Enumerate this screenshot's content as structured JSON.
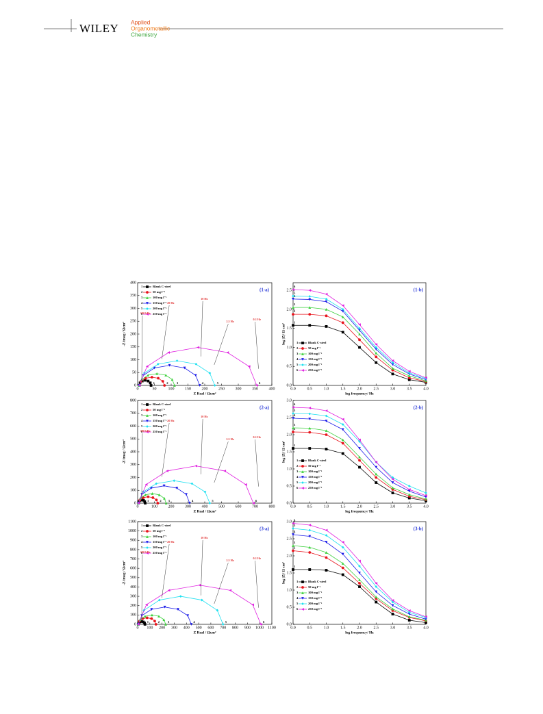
{
  "header": {
    "brand": "WILEY",
    "journal": [
      "Applied",
      "Organometallic",
      "Chemistry"
    ]
  },
  "chart_data": [
    {
      "type": "line",
      "panel": "(1-a)",
      "xlabel": "Z Real / Ωcm²",
      "ylabel": "-Z imag / Ωcm²",
      "xlim": [
        0,
        400
      ],
      "ylim": [
        0,
        400
      ],
      "xticks": [
        0,
        50,
        100,
        150,
        200,
        250,
        300,
        350,
        400
      ],
      "yticks": [
        0,
        50,
        100,
        150,
        200,
        250,
        300,
        350,
        400
      ],
      "annotations": [
        "100 kHz",
        "20 Hz",
        "10 Hz",
        "2.5 Hz",
        "0.1 Hz"
      ],
      "series": [
        {
          "name": "Blank C-steel",
          "label": "1",
          "color": "#000000",
          "marker": "square",
          "x": [
            5,
            7.3,
            13.8,
            22.5,
            31.3,
            37.7,
            40
          ],
          "values": [
            0,
            10,
            17,
            20,
            17,
            10,
            0
          ]
        },
        {
          "name": "50 mg l⁻¹",
          "label": "2",
          "color": "#e8141d",
          "marker": "circle",
          "x": [
            5,
            10,
            23.8,
            42.5,
            61.3,
            75,
            80
          ],
          "values": [
            0,
            16,
            28,
            32,
            28,
            16,
            0
          ]
        },
        {
          "name": "100 mg l⁻¹",
          "label": "3",
          "color": "#3ed13e",
          "marker": "up",
          "x": [
            5,
            12,
            31,
            57.5,
            84,
            103,
            110
          ],
          "values": [
            0,
            23,
            40,
            46,
            40,
            23,
            0
          ]
        },
        {
          "name": "150 mg l⁻¹",
          "label": "4",
          "color": "#1a1ae8",
          "marker": "down",
          "x": [
            5,
            17,
            50,
            95,
            140,
            173,
            185
          ],
          "values": [
            0,
            39,
            68,
            78,
            68,
            39,
            0
          ]
        },
        {
          "name": "200 mg l⁻¹",
          "label": "5",
          "color": "#1ee0f0",
          "marker": "diamond",
          "x": [
            5,
            20,
            61,
            117.5,
            174,
            215,
            230
          ],
          "values": [
            0,
            48,
            83,
            96,
            83,
            48,
            0
          ]
        },
        {
          "name": "250 mg l⁻¹",
          "label": "6",
          "color": "#e020e0",
          "marker": "left",
          "x": [
            5,
            28,
            92,
            180,
            268,
            332,
            355
          ],
          "values": [
            0,
            74,
            128,
            148,
            128,
            74,
            0
          ]
        }
      ]
    },
    {
      "type": "line",
      "panel": "(1-b)",
      "xlabel": "log frequency/ Hz",
      "ylabel": "log |Z|/ Ω cm²",
      "xlim": [
        0,
        4
      ],
      "ylim": [
        0,
        2.7
      ],
      "xticks": [
        {
          "value": 0,
          "label": "0.0"
        },
        0.5,
        {
          "value": 1,
          "label": "1.0"
        },
        1.5,
        {
          "value": 2,
          "label": "2.0"
        },
        2.5,
        {
          "value": 3,
          "label": "3.0"
        },
        3.5,
        {
          "value": 4,
          "label": "4.0"
        }
      ],
      "yticks": [
        {
          "value": 0,
          "label": "0.0"
        },
        0.5,
        {
          "value": 1,
          "label": "1.0"
        },
        1.5,
        {
          "value": 2,
          "label": "2.0"
        },
        2.5
      ],
      "x": [
        0,
        0.5,
        1,
        1.5,
        2,
        2.5,
        3,
        3.5,
        4
      ],
      "series": [
        {
          "name": "Blank C-steel",
          "label": "1",
          "color": "#000000",
          "marker": "square",
          "values": [
            1.58,
            1.58,
            1.55,
            1.4,
            1.0,
            0.6,
            0.3,
            0.15,
            0.08
          ]
        },
        {
          "name": "50 mg l⁻¹",
          "label": "2",
          "color": "#e8141d",
          "marker": "circle",
          "values": [
            1.87,
            1.87,
            1.83,
            1.65,
            1.2,
            0.75,
            0.4,
            0.2,
            0.1
          ]
        },
        {
          "name": "100 mg l⁻¹",
          "label": "3",
          "color": "#3ed13e",
          "marker": "up",
          "values": [
            2.05,
            2.05,
            2.0,
            1.8,
            1.35,
            0.85,
            0.45,
            0.25,
            0.12
          ]
        },
        {
          "name": "150 mg l⁻¹",
          "label": "4",
          "color": "#1a1ae8",
          "marker": "down",
          "values": [
            2.27,
            2.26,
            2.2,
            1.95,
            1.45,
            0.95,
            0.55,
            0.3,
            0.15
          ]
        },
        {
          "name": "200 mg l⁻¹",
          "label": "5",
          "color": "#1ee0f0",
          "marker": "diamond",
          "values": [
            2.35,
            2.34,
            2.27,
            2.0,
            1.5,
            1.0,
            0.6,
            0.33,
            0.18
          ]
        },
        {
          "name": "250 mg l⁻¹",
          "label": "6",
          "color": "#e020e0",
          "marker": "left",
          "values": [
            2.52,
            2.5,
            2.4,
            2.1,
            1.6,
            1.08,
            0.65,
            0.37,
            0.2
          ]
        }
      ]
    },
    {
      "type": "line",
      "panel": "(2-a)",
      "xlabel": "Z Real / Ωcm²",
      "ylabel": "-Z imag / Ωcm²",
      "xlim": [
        0,
        800
      ],
      "ylim": [
        0,
        800
      ],
      "xticks": [
        0,
        100,
        200,
        300,
        400,
        500,
        600,
        700,
        800
      ],
      "yticks": [
        0,
        100,
        200,
        300,
        400,
        500,
        600,
        700,
        800
      ],
      "annotations": [
        "100 kHz",
        "20 Hz",
        "10 Hz",
        "2.5 Hz",
        "0.1 Hz"
      ],
      "series": [
        {
          "name": "Blank C-steel",
          "label": "1",
          "color": "#000000",
          "marker": "square",
          "x": [
            5,
            7.7,
            15,
            25,
            35,
            42.3,
            45
          ],
          "values": [
            0,
            12,
            22,
            25,
            22,
            12,
            0
          ]
        },
        {
          "name": "50 mg l⁻¹",
          "label": "2",
          "color": "#e8141d",
          "marker": "circle",
          "x": [
            5,
            13,
            34,
            62.5,
            91,
            112,
            120
          ],
          "values": [
            0,
            25,
            43,
            50,
            43,
            25,
            0
          ]
        },
        {
          "name": "100 mg l⁻¹",
          "label": "3",
          "color": "#3ed13e",
          "marker": "up",
          "x": [
            5,
            16,
            46,
            87.5,
            129,
            159,
            170
          ],
          "values": [
            0,
            38,
            65,
            75,
            65,
            38,
            0
          ]
        },
        {
          "name": "150 mg l⁻¹",
          "label": "4",
          "color": "#1a1ae8",
          "marker": "down",
          "x": [
            5,
            25,
            81,
            157.5,
            234,
            290,
            310
          ],
          "values": [
            0,
            68,
            117,
            135,
            117,
            68,
            0
          ]
        },
        {
          "name": "200 mg l⁻¹",
          "label": "5",
          "color": "#1ee0f0",
          "marker": "diamond",
          "x": [
            5,
            33,
            111,
            217.5,
            324,
            402,
            430
          ],
          "values": [
            0,
            88,
            152,
            175,
            152,
            88,
            0
          ]
        },
        {
          "name": "250 mg l⁻¹",
          "label": "6",
          "color": "#e020e0",
          "marker": "left",
          "x": [
            5,
            51,
            176,
            347.5,
            519,
            644,
            690
          ],
          "values": [
            0,
            145,
            251,
            290,
            251,
            145,
            0
          ]
        }
      ]
    },
    {
      "type": "line",
      "panel": "(2-b)",
      "xlabel": "log frequency/ Hz",
      "ylabel": "log |Z|/ Ω cm²",
      "xlim": [
        0,
        4
      ],
      "ylim": [
        0,
        3
      ],
      "xticks": [
        {
          "value": 0,
          "label": "0.0"
        },
        0.5,
        {
          "value": 1,
          "label": "1.0"
        },
        1.5,
        {
          "value": 2,
          "label": "2.0"
        },
        2.5,
        {
          "value": 3,
          "label": "3.0"
        },
        3.5,
        {
          "value": 4,
          "label": "4.0"
        }
      ],
      "yticks": [
        {
          "value": 0,
          "label": "0.0"
        },
        0.5,
        {
          "value": 1,
          "label": "1.0"
        },
        1.5,
        {
          "value": 2,
          "label": "2.0"
        },
        2.5,
        {
          "value": 3,
          "label": "3.0"
        }
      ],
      "x": [
        0,
        0.5,
        1,
        1.5,
        2,
        2.5,
        3,
        3.5,
        4
      ],
      "series": [
        {
          "name": "Blank C-steel",
          "label": "1",
          "color": "#000000",
          "marker": "square",
          "values": [
            1.6,
            1.6,
            1.58,
            1.45,
            1.05,
            0.6,
            0.3,
            0.15,
            0.07
          ]
        },
        {
          "name": "50 mg l⁻¹",
          "label": "2",
          "color": "#e8141d",
          "marker": "circle",
          "values": [
            2.08,
            2.07,
            2.0,
            1.75,
            1.25,
            0.75,
            0.4,
            0.2,
            0.1
          ]
        },
        {
          "name": "100 mg l⁻¹",
          "label": "3",
          "color": "#3ed13e",
          "marker": "up",
          "values": [
            2.2,
            2.19,
            2.12,
            1.85,
            1.35,
            0.85,
            0.45,
            0.25,
            0.12
          ]
        },
        {
          "name": "150 mg l⁻¹",
          "label": "4",
          "color": "#1a1ae8",
          "marker": "down",
          "values": [
            2.48,
            2.46,
            2.4,
            2.15,
            1.6,
            1.05,
            0.6,
            0.35,
            0.18
          ]
        },
        {
          "name": "200 mg l⁻¹",
          "label": "5",
          "color": "#1ee0f0",
          "marker": "diamond",
          "values": [
            2.62,
            2.61,
            2.55,
            2.3,
            1.8,
            1.2,
            0.75,
            0.5,
            0.3
          ]
        },
        {
          "name": "250 mg l⁻¹",
          "label": "6",
          "color": "#e020e0",
          "marker": "left",
          "values": [
            2.8,
            2.78,
            2.7,
            2.45,
            1.85,
            1.2,
            0.7,
            0.4,
            0.22
          ]
        }
      ]
    },
    {
      "type": "line",
      "panel": "(3-a)",
      "xlabel": "Z Real / Ωcm²",
      "ylabel": "-Z imag / Ωcm²",
      "xlim": [
        0,
        1100
      ],
      "ylim": [
        0,
        1100
      ],
      "xticks": [
        0,
        100,
        200,
        300,
        400,
        500,
        600,
        700,
        800,
        900,
        1000,
        1100
      ],
      "yticks": [
        0,
        100,
        200,
        300,
        400,
        500,
        600,
        700,
        800,
        900,
        1000,
        1100
      ],
      "annotations": [
        "100 kHz",
        "20 Hz",
        "10 Hz",
        "2.5 Hz",
        "0.1 Hz"
      ],
      "series": [
        {
          "name": "Blank C-steel",
          "label": "1",
          "color": "#000000",
          "marker": "square",
          "x": [
            5,
            8.7,
            18.8,
            32.5,
            46.3,
            56.3,
            60
          ],
          "values": [
            0,
            15,
            26,
            30,
            26,
            15,
            0
          ]
        },
        {
          "name": "50 mg l⁻¹",
          "label": "2",
          "color": "#e8141d",
          "marker": "circle",
          "x": [
            5,
            15,
            41,
            77.5,
            114,
            140,
            150
          ],
          "values": [
            0,
            35,
            61,
            70,
            61,
            35,
            0
          ]
        },
        {
          "name": "100 mg l⁻¹",
          "label": "3",
          "color": "#3ed13e",
          "marker": "up",
          "x": [
            5,
            20,
            61,
            117.5,
            174,
            215,
            230
          ],
          "values": [
            0,
            50,
            87,
            100,
            87,
            50,
            0
          ]
        },
        {
          "name": "150 mg l⁻¹",
          "label": "4",
          "color": "#1a1ae8",
          "marker": "down",
          "x": [
            5,
            34,
            114,
            222.5,
            331,
            411,
            440
          ],
          "values": [
            0,
            93,
            160,
            185,
            160,
            93,
            0
          ]
        },
        {
          "name": "200 mg l⁻¹",
          "label": "5",
          "color": "#1ee0f0",
          "marker": "diamond",
          "x": [
            5,
            52,
            179,
            352.5,
            526,
            653,
            700
          ],
          "values": [
            0,
            150,
            260,
            300,
            260,
            150,
            0
          ]
        },
        {
          "name": "250 mg l⁻¹",
          "label": "6",
          "color": "#e020e0",
          "marker": "left",
          "x": [
            5,
            72,
            256,
            507.5,
            759,
            943,
            1010
          ],
          "values": [
            0,
            210,
            364,
            420,
            364,
            210,
            0
          ]
        }
      ]
    },
    {
      "type": "line",
      "panel": "(3-b)",
      "xlabel": "log frequency/ Hz",
      "ylabel": "log |Z|/ Ω cm²",
      "xlim": [
        0,
        4
      ],
      "ylim": [
        0,
        3
      ],
      "xticks": [
        {
          "value": 0,
          "label": "0.0"
        },
        0.5,
        {
          "value": 1,
          "label": "1.0"
        },
        1.5,
        {
          "value": 2,
          "label": "2.0"
        },
        2.5,
        {
          "value": 3,
          "label": "3.0"
        },
        3.5,
        {
          "value": 4,
          "label": "4.0"
        }
      ],
      "yticks": [
        {
          "value": 0,
          "label": "0.0"
        },
        0.5,
        {
          "value": 1,
          "label": "1.0"
        },
        1.5,
        {
          "value": 2,
          "label": "2.0"
        },
        2.5,
        {
          "value": 3,
          "label": "3.0"
        }
      ],
      "x": [
        0,
        0.5,
        1,
        1.5,
        2,
        2.5,
        3,
        3.5,
        4
      ],
      "series": [
        {
          "name": "Blank C-steel",
          "label": "1",
          "color": "#000000",
          "marker": "square",
          "values": [
            1.6,
            1.6,
            1.58,
            1.45,
            1.1,
            0.65,
            0.3,
            0.12,
            0.05
          ]
        },
        {
          "name": "50 mg l⁻¹",
          "label": "2",
          "color": "#e8141d",
          "marker": "circle",
          "values": [
            2.15,
            2.1,
            1.95,
            1.65,
            1.2,
            0.75,
            0.4,
            0.2,
            0.1
          ]
        },
        {
          "name": "100 mg l⁻¹",
          "label": "3",
          "color": "#3ed13e",
          "marker": "up",
          "values": [
            2.3,
            2.25,
            2.1,
            1.78,
            1.3,
            0.8,
            0.45,
            0.22,
            0.12
          ]
        },
        {
          "name": "150 mg l⁻¹",
          "label": "4",
          "color": "#1a1ae8",
          "marker": "down",
          "values": [
            2.62,
            2.57,
            2.4,
            2.05,
            1.5,
            0.95,
            0.55,
            0.3,
            0.15
          ]
        },
        {
          "name": "200 mg l⁻¹",
          "label": "5",
          "color": "#1ee0f0",
          "marker": "diamond",
          "values": [
            2.8,
            2.75,
            2.6,
            2.25,
            1.7,
            1.1,
            0.65,
            0.35,
            0.2
          ]
        },
        {
          "name": "250 mg l⁻¹",
          "label": "6",
          "color": "#e020e0",
          "marker": "left",
          "values": [
            2.95,
            2.9,
            2.75,
            2.4,
            1.85,
            1.2,
            0.7,
            0.4,
            0.22
          ]
        }
      ]
    }
  ]
}
